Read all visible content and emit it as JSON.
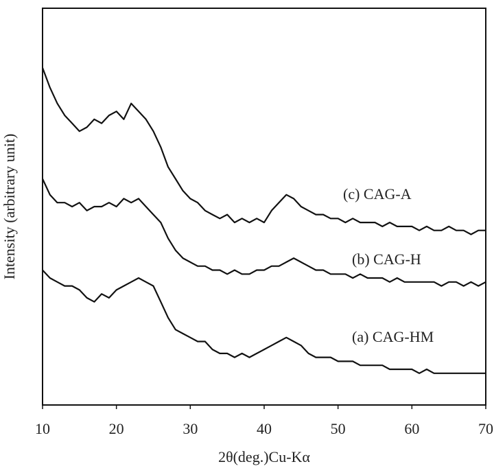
{
  "chart_data": {
    "type": "line",
    "x_label": "2θ(deg.)Cu-Kα",
    "y_label": "Intensity (arbitrary unit)",
    "x": [
      10,
      11,
      12,
      13,
      14,
      15,
      16,
      17,
      18,
      19,
      20,
      21,
      22,
      23,
      24,
      25,
      26,
      27,
      28,
      29,
      30,
      31,
      32,
      33,
      34,
      35,
      36,
      37,
      38,
      39,
      40,
      41,
      42,
      43,
      44,
      45,
      46,
      47,
      48,
      49,
      50,
      51,
      52,
      53,
      54,
      55,
      56,
      57,
      58,
      59,
      60,
      61,
      62,
      63,
      64,
      65,
      66,
      67,
      68,
      69,
      70
    ],
    "xlim": [
      10,
      70
    ],
    "xticks": [
      10,
      20,
      30,
      40,
      50,
      60,
      70
    ],
    "ylim": [
      0,
      100
    ],
    "series": [
      {
        "name": "(c) CAG-A",
        "color": "#111111",
        "values": [
          85,
          80,
          76,
          73,
          71,
          69,
          70,
          72,
          71,
          73,
          74,
          72,
          76,
          74,
          72,
          69,
          65,
          60,
          57,
          54,
          52,
          51,
          49,
          48,
          47,
          48,
          46,
          47,
          46,
          47,
          46,
          49,
          51,
          53,
          52,
          50,
          49,
          48,
          48,
          47,
          47,
          46,
          47,
          46,
          46,
          46,
          45,
          46,
          45,
          45,
          45,
          44,
          45,
          44,
          44,
          45,
          44,
          44,
          43,
          44,
          44
        ]
      },
      {
        "name": "(b) CAG-H",
        "color": "#111111",
        "values": [
          57,
          53,
          51,
          51,
          50,
          51,
          49,
          50,
          50,
          51,
          50,
          52,
          51,
          52,
          50,
          48,
          46,
          42,
          39,
          37,
          36,
          35,
          35,
          34,
          34,
          33,
          34,
          33,
          33,
          34,
          34,
          35,
          35,
          36,
          37,
          36,
          35,
          34,
          34,
          33,
          33,
          33,
          32,
          33,
          32,
          32,
          32,
          31,
          32,
          31,
          31,
          31,
          31,
          31,
          30,
          31,
          31,
          30,
          31,
          30,
          31
        ]
      },
      {
        "name": "(a) CAG-HM",
        "color": "#111111",
        "values": [
          34,
          32,
          31,
          30,
          30,
          29,
          27,
          26,
          28,
          27,
          29,
          30,
          31,
          32,
          31,
          30,
          26,
          22,
          19,
          18,
          17,
          16,
          16,
          14,
          13,
          13,
          12,
          13,
          12,
          13,
          14,
          15,
          16,
          17,
          16,
          15,
          13,
          12,
          12,
          12,
          11,
          11,
          11,
          10,
          10,
          10,
          10,
          9,
          9,
          9,
          9,
          8,
          9,
          8,
          8,
          8,
          8,
          8,
          8,
          8,
          8
        ]
      }
    ]
  }
}
